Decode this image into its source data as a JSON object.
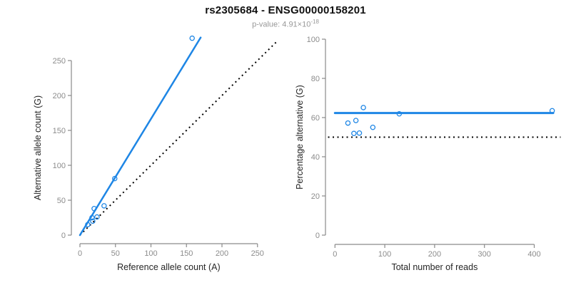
{
  "header": {
    "title": "rs2305684 - ENSG00000158201",
    "pvalue_text": "p-value: 4.91×10",
    "pvalue_exponent": "-18"
  },
  "colors": {
    "accent_blue": "#1e86e5",
    "axis_line_gray": "#8a8a8a",
    "tick_label_gray": "#8c8c8c",
    "axis_title_dark": "#262626",
    "reference_black": "#000000",
    "background": "#ffffff",
    "title_black": "#111111",
    "subtitle_gray": "#989898"
  },
  "chart_data": [
    {
      "type": "scatter",
      "panel": "left",
      "xlabel": "Reference allele count (A)",
      "ylabel": "Alternative allele count (G)",
      "xticks": [
        0,
        50,
        100,
        150,
        200,
        250
      ],
      "yticks": [
        0,
        50,
        100,
        150,
        200,
        250
      ],
      "xlim": [
        0,
        277
      ],
      "ylim": [
        0,
        283
      ],
      "grid": false,
      "legend": false,
      "points": [
        [
          11,
          15
        ],
        [
          17,
          25
        ],
        [
          18,
          20
        ],
        [
          20,
          38
        ],
        [
          24,
          26
        ],
        [
          34,
          42
        ],
        [
          49,
          81
        ],
        [
          158,
          282
        ]
      ],
      "fit_line": {
        "x1": 0,
        "y1": 0,
        "x2": 170,
        "y2": 283,
        "meaning": "allelic-ratio fit, slope 1.66"
      },
      "reference_line": {
        "x1": 0,
        "y1": 0,
        "x2": 276,
        "y2": 276,
        "meaning": "identity line y=x"
      }
    },
    {
      "type": "scatter",
      "panel": "right",
      "xlabel": "Total number of reads",
      "ylabel": "Percentage alternative (G)",
      "xticks": [
        0,
        100,
        200,
        300,
        400
      ],
      "yticks": [
        0,
        20,
        40,
        60,
        80,
        100
      ],
      "xlim": [
        0,
        453
      ],
      "ylim": [
        0,
        100
      ],
      "grid": false,
      "legend": false,
      "points": [
        [
          26,
          57.2
        ],
        [
          38,
          51.9
        ],
        [
          42,
          58.5
        ],
        [
          49,
          52.1
        ],
        [
          57,
          65.1
        ],
        [
          76,
          55
        ],
        [
          129,
          61.9
        ],
        [
          436,
          63.5
        ]
      ],
      "fit_line": {
        "x1": 0,
        "y1": 62.3,
        "x2": 438,
        "y2": 62.3,
        "meaning": "mean percentage alternative 62.3%"
      },
      "reference_line": {
        "x1": -14,
        "y1": 50,
        "x2": 453,
        "y2": 50,
        "meaning": "50% reference"
      }
    }
  ]
}
